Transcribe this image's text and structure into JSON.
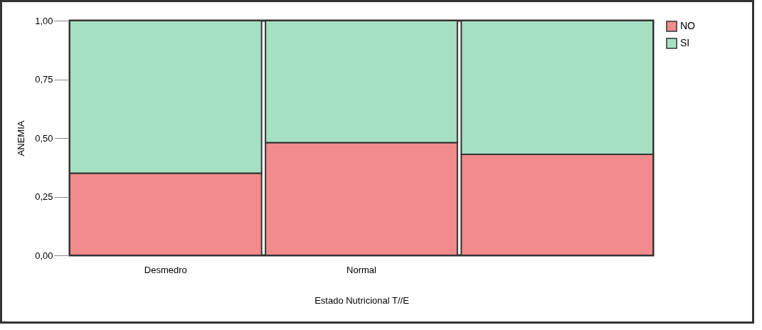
{
  "chart_data": {
    "type": "bar",
    "stacked": true,
    "xlabel": "Estado Nutricional T//E",
    "ylabel": "ANEMIA",
    "categories": [
      "Desmedro",
      "Normal",
      null
    ],
    "series": [
      {
        "name": "NO",
        "color": "#f28b8b",
        "values": [
          0.35,
          0.48,
          0.43
        ]
      },
      {
        "name": "SI",
        "color": "#a6e0c2",
        "values": [
          0.65,
          0.52,
          0.57
        ]
      }
    ],
    "ylim": [
      0,
      1
    ],
    "yticks": [
      {
        "value": 0,
        "label": "0,00"
      },
      {
        "value": 0.25,
        "label": "0,25"
      },
      {
        "value": 0.5,
        "label": "0,50"
      },
      {
        "value": 0.75,
        "label": "0,75"
      },
      {
        "value": 1,
        "label": "1,00"
      }
    ],
    "grid": false,
    "legend": "right"
  }
}
